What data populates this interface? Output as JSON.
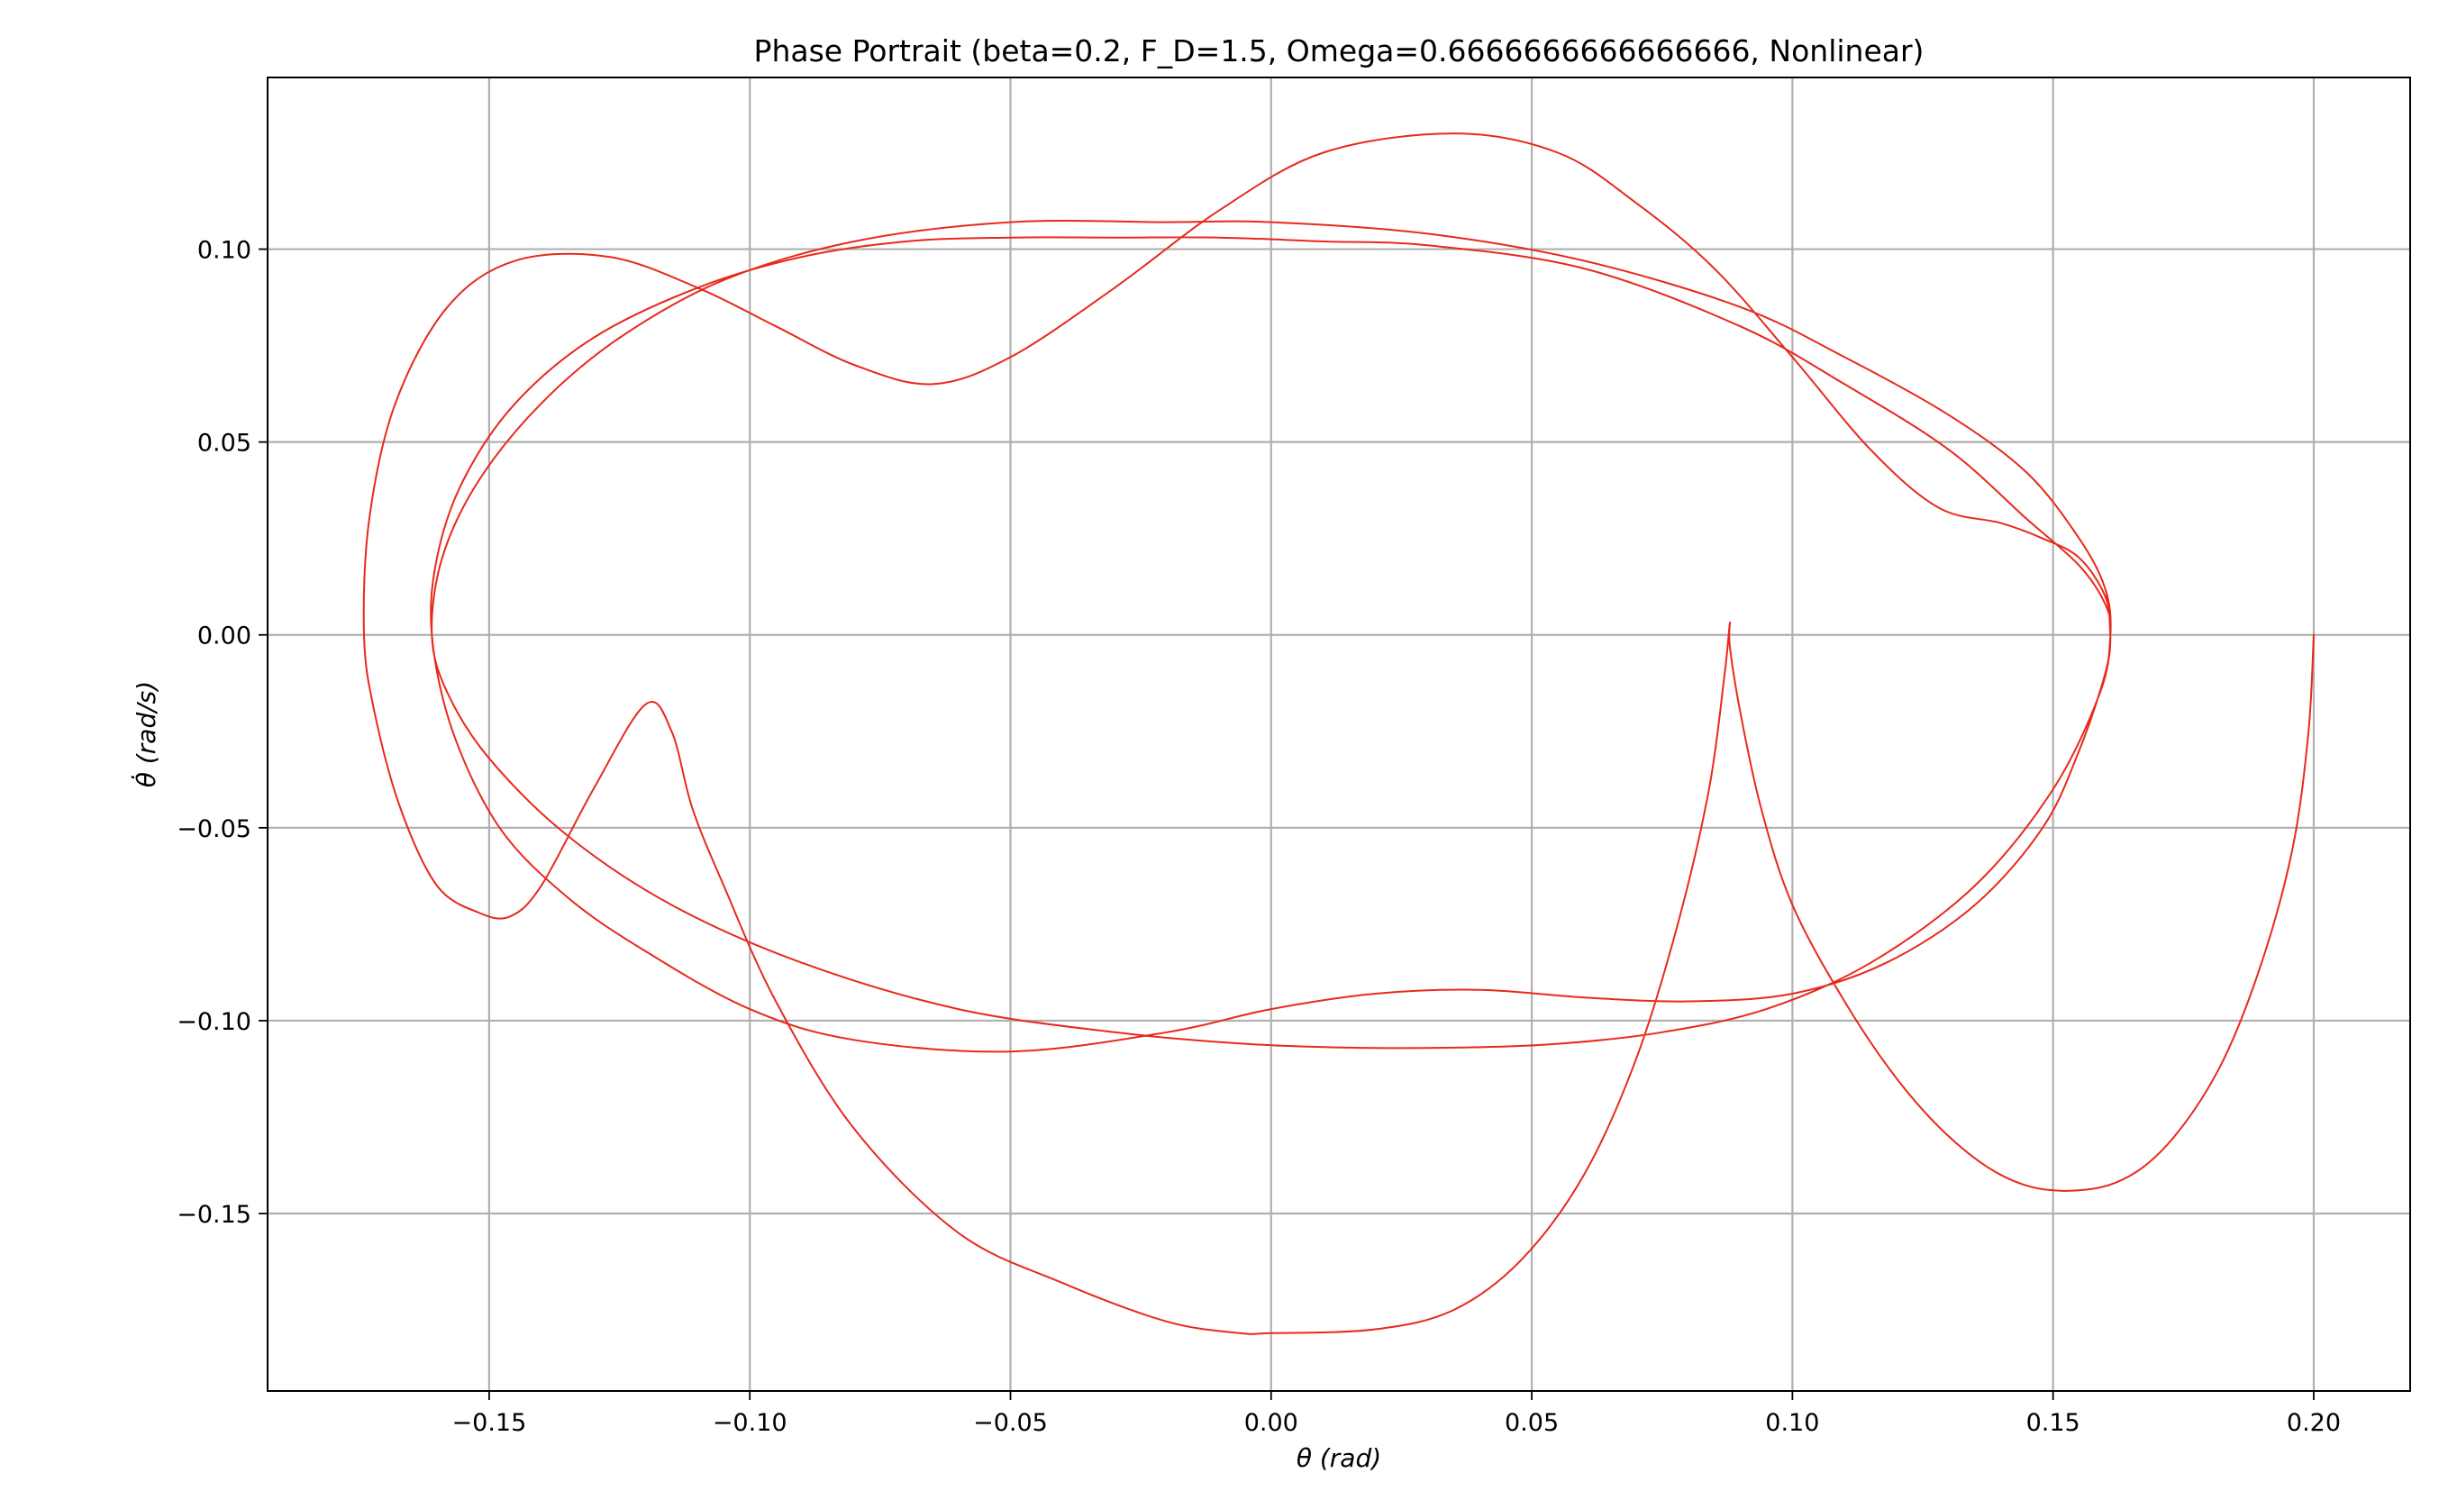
{
  "chart_data": {
    "type": "line",
    "title": "Phase Portrait (beta=0.2, F_D=1.5, Omega=0.6666666666666666, Nonlinear)",
    "xlabel": "θ (rad)",
    "ylabel": "θ̇ (rad/s)",
    "xlim": [
      -0.1925,
      0.2185
    ],
    "ylim": [
      -0.196,
      0.1445
    ],
    "xticks": [
      -0.15,
      -0.1,
      -0.05,
      0.0,
      0.05,
      0.1,
      0.15,
      0.2
    ],
    "xtick_labels": [
      "−0.15",
      "−0.10",
      "−0.05",
      "0.00",
      "0.05",
      "0.10",
      "0.15",
      "0.20"
    ],
    "yticks": [
      -0.15,
      -0.1,
      -0.05,
      0.0,
      0.05,
      0.1
    ],
    "ytick_labels": [
      "−0.15",
      "−0.10",
      "−0.05",
      "0.00",
      "0.05",
      "0.10"
    ],
    "grid": true,
    "line_color": "#e8291c",
    "series": [
      {
        "x": [
          0.2,
          0.199,
          0.196,
          0.19,
          0.182,
          0.172,
          0.162,
          0.15,
          0.14,
          0.13,
          0.12,
          0.11,
          0.1,
          0.094,
          0.09,
          0.088,
          0.088,
          0.087,
          0.084,
          0.078,
          0.07,
          0.06,
          0.048,
          0.035,
          0.02,
          0.0,
          -0.006,
          -0.02,
          -0.04,
          -0.06,
          -0.08,
          -0.095,
          -0.105,
          -0.111,
          -0.115,
          -0.12,
          -0.13,
          -0.14,
          -0.146,
          -0.152,
          -0.16,
          -0.167,
          -0.172,
          -0.174,
          -0.173,
          -0.168,
          -0.158,
          -0.145,
          -0.127,
          -0.11,
          -0.095,
          -0.08,
          -0.065,
          -0.05,
          -0.03,
          -0.01,
          0.01,
          0.035,
          0.055,
          0.07,
          0.085,
          0.1,
          0.115,
          0.128,
          0.14,
          0.148,
          0.155,
          0.16,
          0.161,
          0.16,
          0.155,
          0.148,
          0.135,
          0.118,
          0.1,
          0.08,
          0.06,
          0.04,
          0.02,
          0.0,
          -0.02,
          -0.05,
          -0.08,
          -0.1,
          -0.12,
          -0.135,
          -0.148,
          -0.157,
          -0.161,
          -0.16,
          -0.155,
          -0.145,
          -0.13,
          -0.11,
          -0.09,
          -0.07,
          -0.05,
          -0.03,
          -0.01,
          0.01,
          0.03,
          0.06,
          0.09,
          0.11,
          0.13,
          0.145,
          0.155,
          0.16,
          0.161,
          0.159,
          0.15,
          0.135,
          0.115,
          0.095,
          0.075,
          0.055,
          0.035,
          0.015,
          -0.005,
          -0.03,
          -0.06,
          -0.09,
          -0.115,
          -0.135,
          -0.15,
          -0.158,
          -0.161,
          -0.159,
          -0.152,
          -0.14,
          -0.125,
          -0.105,
          -0.08,
          -0.05,
          -0.02,
          0.0,
          0.03,
          0.06,
          0.09,
          0.11,
          0.13,
          0.145,
          0.155,
          0.16,
          0.161,
          0.159,
          0.15,
          0.135,
          0.115,
          0.095,
          0.075,
          0.055,
          0.035,
          0.015,
          -0.005,
          -0.03,
          -0.06,
          -0.09,
          -0.115,
          -0.135,
          -0.15,
          -0.158,
          -0.161,
          -0.159,
          -0.152,
          -0.14,
          -0.125,
          -0.105,
          -0.08,
          -0.05,
          -0.02,
          0.0,
          0.03,
          0.06,
          0.09,
          0.11,
          0.13,
          0.145,
          0.155,
          0.16,
          0.161
        ],
        "y": [
          0.0,
          -0.025,
          -0.055,
          -0.085,
          -0.112,
          -0.132,
          -0.142,
          -0.144,
          -0.14,
          -0.13,
          -0.115,
          -0.095,
          -0.07,
          -0.045,
          -0.02,
          -0.003,
          0.003,
          -0.01,
          -0.04,
          -0.075,
          -0.11,
          -0.14,
          -0.162,
          -0.175,
          -0.18,
          -0.181,
          -0.181,
          -0.178,
          -0.168,
          -0.155,
          -0.128,
          -0.095,
          -0.065,
          -0.045,
          -0.025,
          -0.018,
          -0.04,
          -0.065,
          -0.073,
          -0.072,
          -0.065,
          -0.045,
          -0.02,
          0.0,
          0.03,
          0.06,
          0.085,
          0.097,
          0.098,
          0.09,
          0.08,
          0.07,
          0.065,
          0.072,
          0.09,
          0.11,
          0.125,
          0.13,
          0.125,
          0.112,
          0.095,
          0.072,
          0.048,
          0.033,
          0.029,
          0.025,
          0.02,
          0.01,
          0.0,
          -0.01,
          -0.03,
          -0.05,
          -0.07,
          -0.085,
          -0.093,
          -0.095,
          -0.094,
          -0.092,
          -0.093,
          -0.097,
          -0.103,
          -0.108,
          -0.105,
          -0.097,
          -0.082,
          -0.068,
          -0.05,
          -0.025,
          0.0,
          0.02,
          0.04,
          0.06,
          0.077,
          0.09,
          0.098,
          0.102,
          0.103,
          0.103,
          0.103,
          0.102,
          0.101,
          0.095,
          0.08,
          0.065,
          0.048,
          0.03,
          0.018,
          0.008,
          0.0,
          -0.015,
          -0.04,
          -0.065,
          -0.085,
          -0.097,
          -0.103,
          -0.106,
          -0.107,
          -0.107,
          -0.106,
          -0.103,
          -0.097,
          -0.085,
          -0.07,
          -0.052,
          -0.032,
          -0.015,
          0.0,
          0.02,
          0.04,
          0.06,
          0.077,
          0.092,
          0.102,
          0.107,
          0.107,
          0.107,
          0.104,
          0.097,
          0.085,
          0.072,
          0.057,
          0.042,
          0.025,
          0.012,
          0.0,
          -0.015,
          -0.04,
          -0.065,
          -0.085,
          -0.097,
          -0.103,
          -0.106,
          -0.107,
          -0.107,
          -0.106,
          -0.103,
          -0.097,
          -0.085,
          -0.07,
          -0.052,
          -0.032,
          -0.015,
          0.0,
          0.02,
          0.04,
          0.06,
          0.077,
          0.092,
          0.102,
          0.107,
          0.107,
          0.107,
          0.104,
          0.097,
          0.085,
          0.072,
          0.057,
          0.042,
          0.025,
          0.012,
          0.0
        ]
      }
    ]
  }
}
